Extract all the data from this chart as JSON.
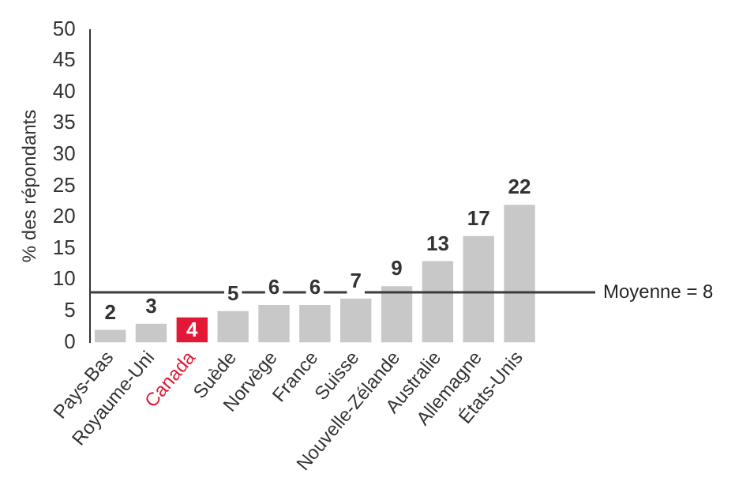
{
  "chart_data": {
    "type": "bar",
    "ylabel": "% des répondants",
    "categories": [
      "Pays-Bas",
      "Royaume-Uni",
      "Canada",
      "Suède",
      "Norvège",
      "France",
      "Suisse",
      "Nouvelle-Zélande",
      "Australie",
      "Allemagne",
      "États-Unis"
    ],
    "values": [
      2,
      3,
      4,
      5,
      6,
      6,
      7,
      9,
      13,
      17,
      22
    ],
    "colors": [
      "#c8c8c8",
      "#c8c8c8",
      "#e31837",
      "#c8c8c8",
      "#c8c8c8",
      "#c8c8c8",
      "#c8c8c8",
      "#c8c8c8",
      "#c8c8c8",
      "#c8c8c8",
      "#c8c8c8"
    ],
    "ylim": [
      0,
      50
    ],
    "yticks": [
      0,
      5,
      10,
      15,
      20,
      25,
      30,
      35,
      40,
      45,
      50
    ],
    "grid": false,
    "legend": false,
    "data_labels": true,
    "ref_lines": [
      {
        "axis": "y",
        "value": 8,
        "label": "Moyenne = 8",
        "color": "#3c3c3c"
      }
    ]
  }
}
